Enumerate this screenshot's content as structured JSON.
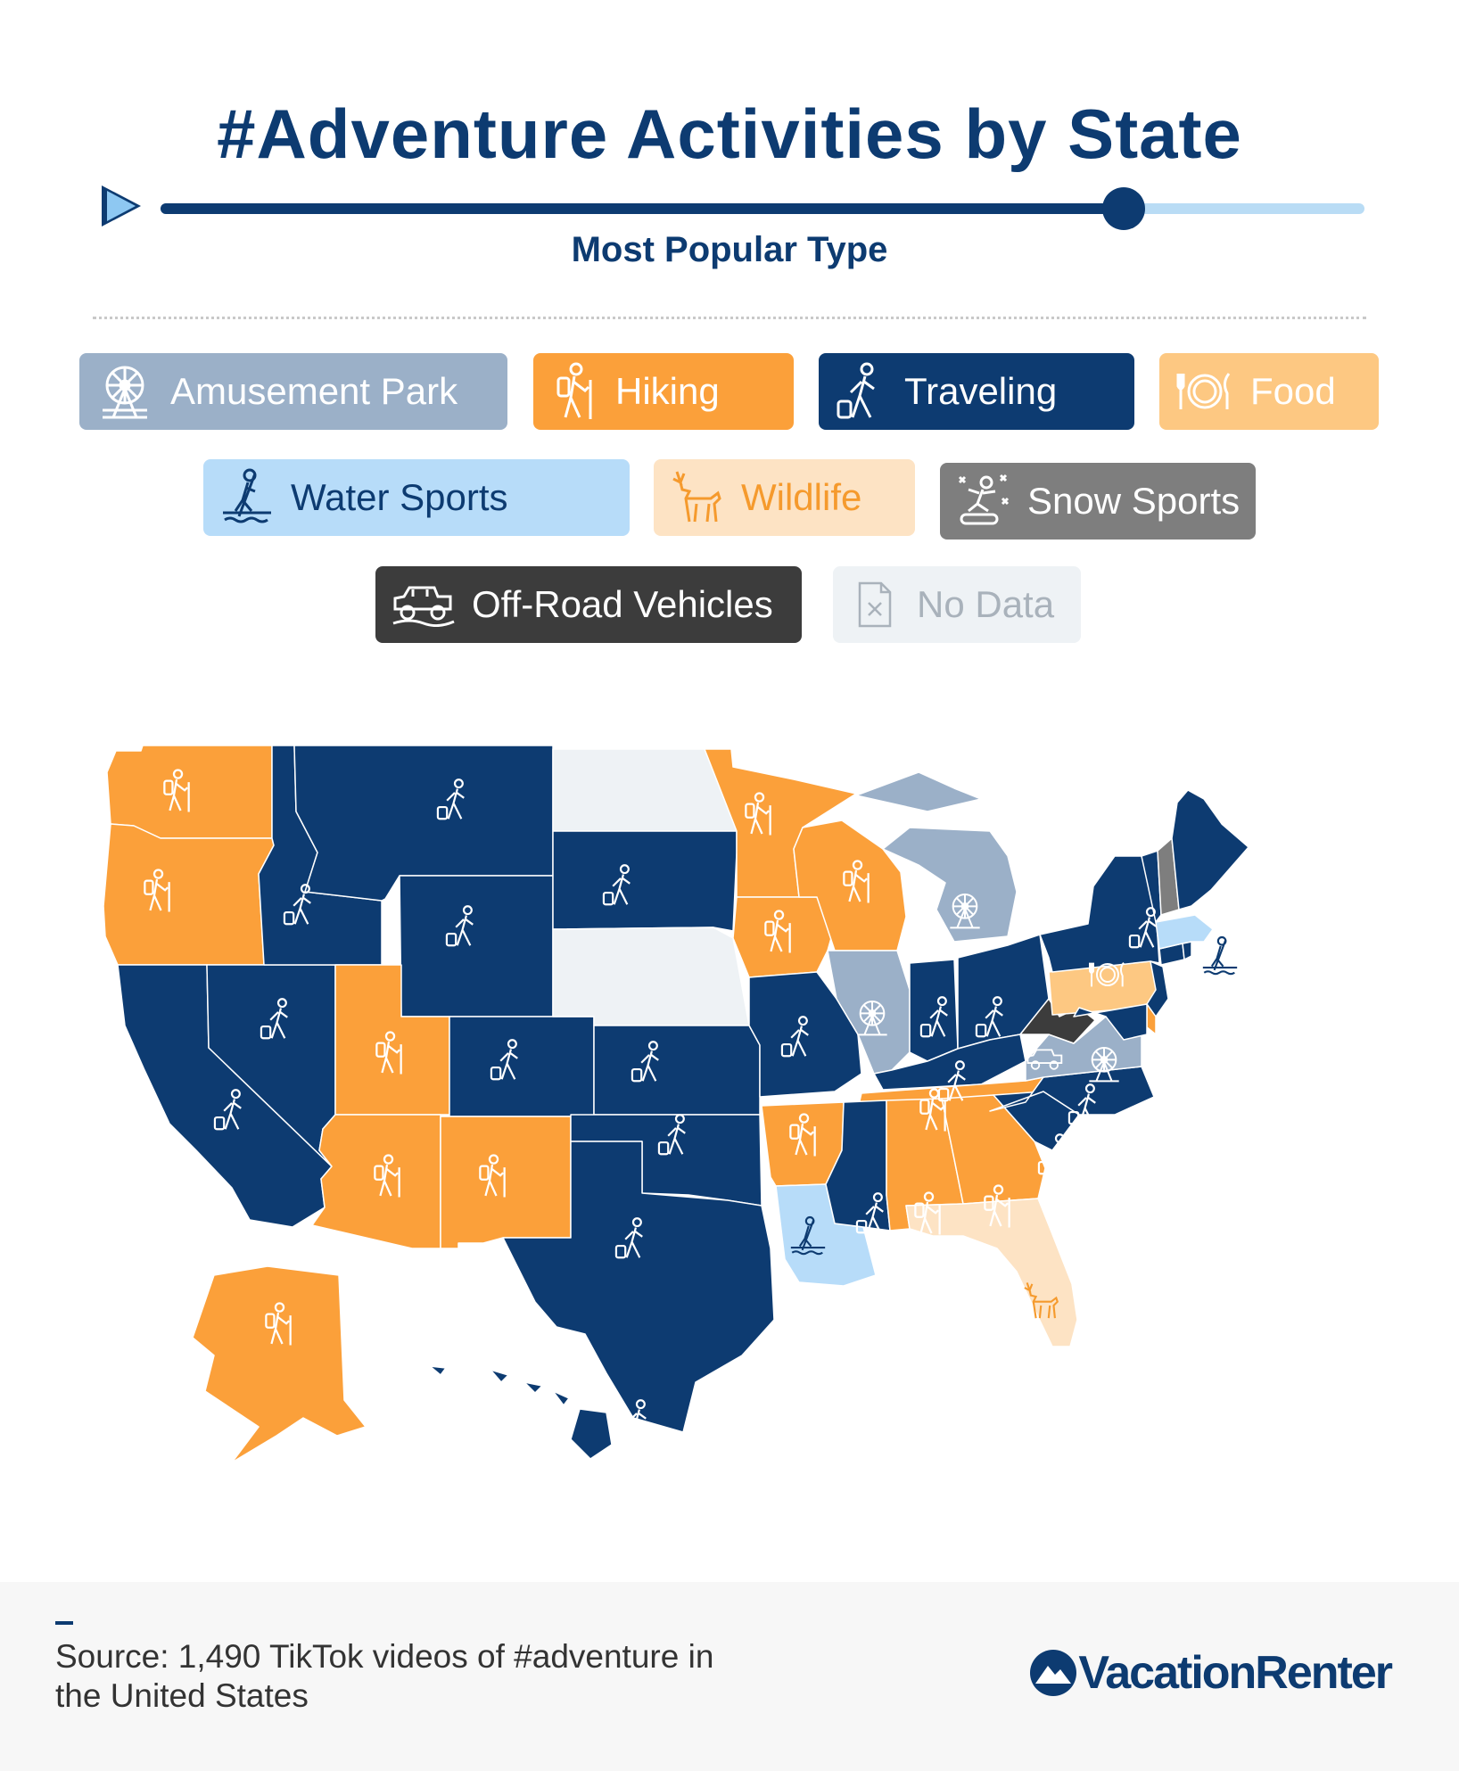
{
  "title": "#Adventure Activities by State",
  "subtitle": "Most Popular Type",
  "timeline": {
    "progress": 0.8
  },
  "legend": [
    {
      "label": "Amusement Park",
      "icon": "ferris-wheel-icon",
      "bg": "#9bb0c8",
      "fg": "#ffffff"
    },
    {
      "label": "Hiking",
      "icon": "hiker-icon",
      "bg": "#fba03a",
      "fg": "#ffffff"
    },
    {
      "label": "Traveling",
      "icon": "traveler-icon",
      "bg": "#0d3b71",
      "fg": "#ffffff"
    },
    {
      "label": "Food",
      "icon": "plate-icon",
      "bg": "#fdc882",
      "fg": "#ffffff"
    },
    {
      "label": "Water Sports",
      "icon": "paddleboard-icon",
      "bg": "#b7dcf9",
      "fg": "#0d3b71"
    },
    {
      "label": "Wildlife",
      "icon": "deer-icon",
      "bg": "#fde3c4",
      "fg": "#f59a2d"
    },
    {
      "label": "Snow Sports",
      "icon": "snowboard-icon",
      "bg": "#7e7e7e",
      "fg": "#ffffff"
    },
    {
      "label": "Off-Road Vehicles",
      "icon": "jeep-icon",
      "bg": "#3c3c3c",
      "fg": "#ffffff"
    },
    {
      "label": "No Data",
      "icon": "no-data-icon",
      "bg": "#eef2f5",
      "fg": "#a9b2bb"
    }
  ],
  "map": {
    "states": {
      "WA": "Hiking",
      "OR": "Hiking",
      "CA": "Traveling",
      "NV": "Traveling",
      "ID": "Traveling",
      "MT": "Traveling",
      "WY": "Traveling",
      "UT": "Hiking",
      "AZ": "Hiking",
      "CO": "Traveling",
      "NM": "Hiking",
      "ND": "No Data",
      "SD": "Traveling",
      "NE": "No Data",
      "KS": "Traveling",
      "OK": "Traveling",
      "TX": "Traveling",
      "MN": "Hiking",
      "IA": "Hiking",
      "MO": "Traveling",
      "AR": "Hiking",
      "LA": "Water Sports",
      "WI": "Hiking",
      "IL": "Amusement Park",
      "MI": "Amusement Park",
      "IN": "Traveling",
      "OH": "Traveling",
      "KY": "Traveling",
      "TN": "Hiking",
      "MS": "Traveling",
      "AL": "Hiking",
      "GA": "Hiking",
      "FL": "Wildlife",
      "SC": "Traveling",
      "NC": "Traveling",
      "VA": "Amusement Park",
      "WV": "Off-Road Vehicles",
      "PA": "Food",
      "NY": "Traveling",
      "NJ": "Traveling",
      "DE": "Hiking",
      "MD": "Traveling",
      "CT": "Traveling",
      "RI": "Traveling",
      "MA": "Water Sports",
      "VT": "Traveling",
      "NH": "Snow Sports",
      "ME": "Traveling",
      "AK": "Hiking",
      "HI": "Traveling"
    }
  },
  "footer": {
    "source": "Source: 1,490 TikTok videos of #adventure in the United States",
    "brand": "VacationRenter"
  }
}
